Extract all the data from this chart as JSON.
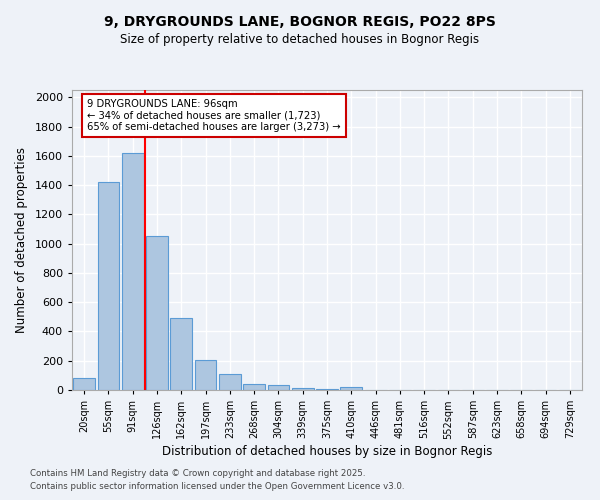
{
  "title_line1": "9, DRYGROUNDS LANE, BOGNOR REGIS, PO22 8PS",
  "title_line2": "Size of property relative to detached houses in Bognor Regis",
  "xlabel": "Distribution of detached houses by size in Bognor Regis",
  "ylabel": "Number of detached properties",
  "categories": [
    "20sqm",
    "55sqm",
    "91sqm",
    "126sqm",
    "162sqm",
    "197sqm",
    "233sqm",
    "268sqm",
    "304sqm",
    "339sqm",
    "375sqm",
    "410sqm",
    "446sqm",
    "481sqm",
    "516sqm",
    "552sqm",
    "587sqm",
    "623sqm",
    "658sqm",
    "694sqm",
    "729sqm"
  ],
  "values": [
    85,
    1420,
    1620,
    1050,
    490,
    205,
    110,
    40,
    35,
    15,
    10,
    20,
    0,
    0,
    0,
    0,
    0,
    0,
    0,
    0,
    0
  ],
  "bar_color": "#adc6e0",
  "bar_edge_color": "#5b9bd5",
  "red_line_index": 2,
  "annotation_text": "9 DRYGROUNDS LANE: 96sqm\n← 34% of detached houses are smaller (1,723)\n65% of semi-detached houses are larger (3,273) →",
  "annotation_box_color": "#ffffff",
  "annotation_box_edge": "#cc0000",
  "ylim": [
    0,
    2050
  ],
  "yticks": [
    0,
    200,
    400,
    600,
    800,
    1000,
    1200,
    1400,
    1600,
    1800,
    2000
  ],
  "background_color": "#eef2f8",
  "grid_color": "#ffffff",
  "footer_line1": "Contains HM Land Registry data © Crown copyright and database right 2025.",
  "footer_line2": "Contains public sector information licensed under the Open Government Licence v3.0."
}
